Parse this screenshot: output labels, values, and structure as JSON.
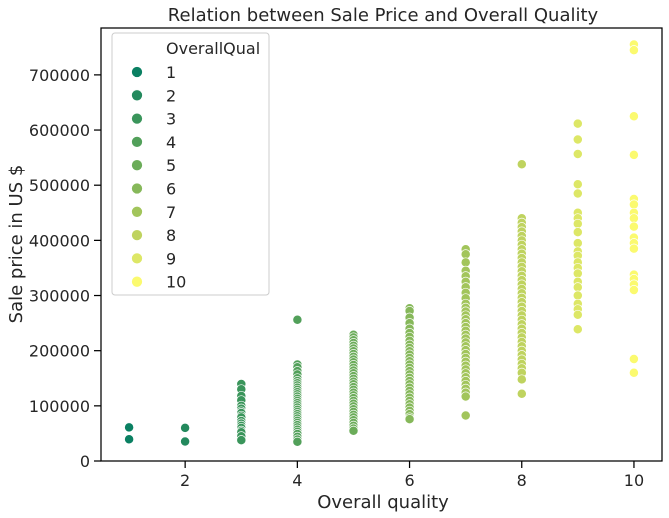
{
  "chart_data": {
    "type": "scatter",
    "title": "Relation between Sale Price and Overall Quality",
    "xlabel": "Overall quality",
    "ylabel": "Sale price in US $",
    "xlim": [
      0.5,
      10.5
    ],
    "ylim": [
      0,
      785000
    ],
    "x_ticks": [
      2,
      4,
      6,
      8,
      10
    ],
    "x_tick_labels": [
      "2",
      "4",
      "6",
      "8",
      "10"
    ],
    "y_ticks": [
      0,
      100000,
      200000,
      300000,
      400000,
      500000,
      600000,
      700000
    ],
    "y_tick_labels": [
      "0",
      "100000",
      "200000",
      "300000",
      "400000",
      "500000",
      "600000",
      "700000"
    ],
    "grid": false,
    "legend": {
      "title": "OverallQual",
      "position": "top-left",
      "entries": [
        "1",
        "2",
        "3",
        "4",
        "5",
        "6",
        "7",
        "8",
        "9",
        "10"
      ]
    },
    "series": [
      {
        "name": "1",
        "color": "#0a8062",
        "x": 1,
        "values": [
          61000,
          39300
        ]
      },
      {
        "name": "2",
        "color": "#23895d",
        "x": 2,
        "values": [
          60000,
          35300
        ]
      },
      {
        "name": "3",
        "color": "#3a955b",
        "x": 3,
        "values": [
          139600,
          130000,
          118000,
          110000,
          100000,
          95000,
          90000,
          87000,
          82000,
          79000,
          72500,
          68000,
          64000,
          60000,
          55000,
          52000,
          45000,
          37900
        ]
      },
      {
        "name": "4",
        "color": "#52a05a",
        "x": 4,
        "values": [
          256000,
          175000,
          170000,
          163000,
          157000,
          150000,
          145000,
          141000,
          137000,
          133000,
          129000,
          125000,
          121000,
          117000,
          113000,
          109000,
          105000,
          101000,
          97000,
          93000,
          89000,
          85000,
          81000,
          77000,
          73000,
          69000,
          65000,
          61000,
          57000,
          53000,
          49000,
          44000,
          39000,
          34900
        ]
      },
      {
        "name": "5",
        "color": "#6bac59",
        "x": 5,
        "values": [
          228950,
          224000,
          219000,
          214000,
          209000,
          204000,
          199000,
          194000,
          189000,
          184000,
          179000,
          174000,
          169000,
          164000,
          159000,
          154000,
          149000,
          144000,
          139000,
          134000,
          129000,
          124000,
          119000,
          114000,
          109000,
          104000,
          99000,
          94000,
          89000,
          84000,
          79000,
          74000,
          69000,
          64000,
          59000,
          55000
        ]
      },
      {
        "name": "6",
        "color": "#86b85a",
        "x": 6,
        "values": [
          277000,
          272000,
          260000,
          250000,
          240000,
          232000,
          225000,
          218000,
          211000,
          205000,
          199000,
          193000,
          187000,
          181000,
          175000,
          169000,
          163000,
          157000,
          151000,
          145000,
          139000,
          133000,
          127000,
          121000,
          115000,
          109000,
          103000,
          97000,
          91000,
          85000,
          79000,
          76000
        ]
      },
      {
        "name": "7",
        "color": "#a2c55b",
        "x": 7,
        "values": [
          383970,
          375000,
          360000,
          345000,
          335000,
          325000,
          315000,
          305000,
          295000,
          285000,
          278000,
          271000,
          264000,
          257000,
          250000,
          243000,
          236000,
          229000,
          222000,
          215000,
          208000,
          201000,
          194000,
          187000,
          180000,
          173000,
          166000,
          159000,
          152000,
          145000,
          138000,
          131000,
          124000,
          117000,
          82500
        ]
      },
      {
        "name": "8",
        "color": "#bfd35f",
        "x": 8,
        "values": [
          538000,
          440000,
          432000,
          424000,
          416000,
          408000,
          400000,
          392000,
          384000,
          376000,
          368000,
          360000,
          352000,
          344000,
          336000,
          328000,
          320000,
          312000,
          304000,
          296000,
          288000,
          280000,
          272000,
          264000,
          256000,
          248000,
          240000,
          232000,
          224000,
          216000,
          208000,
          200000,
          192000,
          184000,
          176000,
          168000,
          160000,
          148000,
          122000
        ]
      },
      {
        "name": "9",
        "color": "#dde766",
        "x": 9,
        "values": [
          611657,
          582933,
          556581,
          501837,
          485000,
          450000,
          440000,
          430000,
          415000,
          395000,
          380000,
          372000,
          360000,
          350000,
          340000,
          325000,
          315000,
          300000,
          285000,
          275000,
          265000,
          239000
        ]
      },
      {
        "name": "10",
        "color": "#fbfa6f",
        "x": 10,
        "values": [
          755000,
          745000,
          625000,
          555000,
          475000,
          465000,
          450000,
          440000,
          425000,
          405000,
          395000,
          385000,
          338000,
          330000,
          320000,
          310000,
          185000,
          160000
        ]
      }
    ]
  }
}
